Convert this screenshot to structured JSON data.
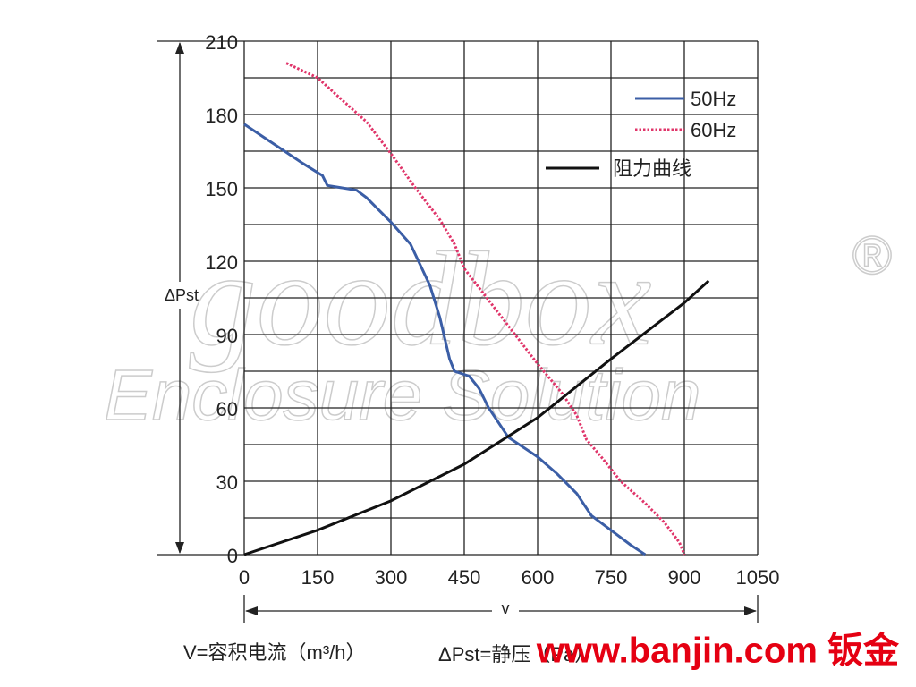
{
  "chart_data": {
    "type": "line",
    "x_label": "v",
    "y_label": "ΔPst",
    "caption": "V=容积电流（m³/h）",
    "caption_hidden": "ΔPst=静压（Pa）",
    "watermark": "goodbox",
    "watermark_mark": "®",
    "watermark_sub": "Enclosure Solution",
    "site_mark": "www.banjin.com 钣金",
    "xlim": [
      0,
      1050
    ],
    "xticks": [
      0,
      150,
      300,
      450,
      600,
      750,
      900,
      1050
    ],
    "ylim": [
      0,
      210
    ],
    "yticks": [
      0,
      30,
      60,
      90,
      120,
      150,
      180,
      210
    ],
    "y_minor_ticks": [
      15,
      45,
      75,
      105,
      135,
      165,
      195
    ],
    "grid": true,
    "legend": "top-right",
    "series": [
      {
        "name": "50Hz",
        "color": "#3b5ea6",
        "dash": "solid",
        "x": [
          0,
          60,
          120,
          160,
          170,
          230,
          250,
          300,
          340,
          380,
          400,
          420,
          430,
          460,
          480,
          500,
          520,
          540,
          570,
          600,
          640,
          680,
          710,
          750,
          790,
          820
        ],
        "values": [
          176,
          168,
          160,
          155,
          151,
          149,
          146,
          136,
          127,
          110,
          97,
          80,
          75,
          73,
          68,
          60,
          54,
          48,
          44,
          40,
          33,
          25,
          16,
          10,
          4,
          0
        ]
      },
      {
        "name": "60Hz",
        "color": "#e0356a",
        "dash": "dotted",
        "x": [
          86,
          150,
          200,
          250,
          300,
          350,
          400,
          430,
          450,
          500,
          550,
          600,
          650,
          680,
          700,
          730,
          770,
          820,
          860,
          890,
          900
        ],
        "values": [
          201,
          195,
          186,
          177,
          164,
          150,
          137,
          127,
          117,
          104,
          91,
          78,
          66,
          57,
          47,
          40,
          30,
          21,
          13,
          5,
          0
        ]
      },
      {
        "name": "阻力曲线",
        "color": "#111111",
        "dash": "solid",
        "x": [
          0,
          150,
          300,
          450,
          600,
          750,
          900,
          950
        ],
        "values": [
          0,
          10,
          22,
          37,
          56,
          80,
          103,
          112
        ]
      }
    ]
  }
}
